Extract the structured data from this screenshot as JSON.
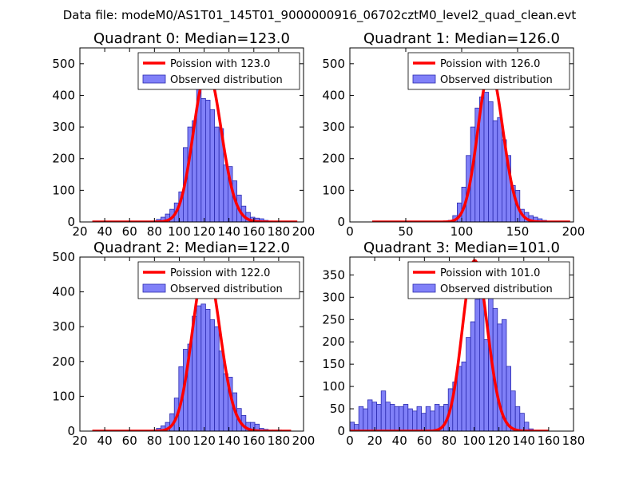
{
  "figure": {
    "suptitle": "Data file: modeM0/AS1T01_145T01_9000000916_06702cztM0_level2_quad_clean.evt"
  },
  "colors": {
    "bar_fill": "#8080f8",
    "bar_edge": "#2b2bb0",
    "poisson_line": "#ff0000"
  },
  "chart_data": [
    {
      "type": "bar",
      "title": "Quadrant 0: Median=123.0",
      "legend": {
        "placement": "top-right",
        "line_label": "Poission with 123.0",
        "bar_label": "Observed distribution"
      },
      "xlim": [
        20,
        200
      ],
      "ylim": [
        0,
        550
      ],
      "xticks": [
        20,
        40,
        60,
        80,
        100,
        120,
        140,
        160,
        180,
        200
      ],
      "yticks": [
        0,
        100,
        200,
        300,
        400,
        500
      ],
      "bin_width": 3.6,
      "bins_x": [
        78,
        81.6,
        85.2,
        88.8,
        92.4,
        96,
        99.6,
        103.2,
        106.8,
        110.4,
        114,
        117.6,
        121.2,
        124.8,
        128.4,
        132,
        135.6,
        139.2,
        142.8,
        146.4,
        150,
        153.6,
        157.2,
        160.8,
        164.4,
        168,
        171.6
      ],
      "bins_y": [
        3,
        8,
        15,
        25,
        40,
        60,
        95,
        235,
        300,
        320,
        435,
        390,
        385,
        355,
        300,
        295,
        180,
        175,
        130,
        85,
        50,
        30,
        15,
        12,
        10,
        5,
        3
      ],
      "poisson": {
        "mean": 123.0,
        "peak": 480,
        "x_range": [
          30,
          195
        ]
      }
    },
    {
      "type": "bar",
      "title": "Quadrant 1: Median=126.0",
      "legend": {
        "placement": "top-right",
        "line_label": "Poission with 126.0",
        "bar_label": "Observed distribution"
      },
      "xlim": [
        0,
        200
      ],
      "ylim": [
        0,
        550
      ],
      "xticks": [
        0,
        50,
        100,
        150,
        200
      ],
      "yticks": [
        0,
        100,
        200,
        300,
        400,
        500
      ],
      "bin_width": 4,
      "bins_x": [
        88,
        92,
        96,
        100,
        104,
        108,
        112,
        116,
        120,
        124,
        128,
        132,
        136,
        140,
        144,
        148,
        152,
        156,
        160,
        164,
        168,
        172
      ],
      "bins_y": [
        5,
        20,
        60,
        110,
        210,
        300,
        360,
        395,
        410,
        380,
        320,
        330,
        260,
        210,
        115,
        100,
        40,
        30,
        20,
        15,
        10,
        5
      ],
      "poisson": {
        "mean": 126.0,
        "peak": 480,
        "x_range": [
          20,
          197
        ]
      }
    },
    {
      "type": "bar",
      "title": "Quadrant 2: Median=122.0",
      "legend": {
        "placement": "top-right",
        "line_label": "Poission with 122.0",
        "bar_label": "Observed distribution"
      },
      "xlim": [
        20,
        200
      ],
      "ylim": [
        0,
        500
      ],
      "xticks": [
        20,
        40,
        60,
        80,
        100,
        120,
        140,
        160,
        180,
        200
      ],
      "yticks": [
        0,
        100,
        200,
        300,
        400,
        500
      ],
      "bin_width": 3.6,
      "bins_x": [
        78,
        81.6,
        85.2,
        88.8,
        92.4,
        96,
        99.6,
        103.2,
        106.8,
        110.4,
        114,
        117.6,
        121.2,
        124.8,
        128.4,
        132,
        135.6,
        139.2,
        142.8,
        146.4,
        150,
        153.6,
        157.2,
        160.8,
        164.4,
        168,
        171.6,
        175.2,
        178.8
      ],
      "bins_y": [
        3,
        8,
        15,
        25,
        50,
        95,
        185,
        235,
        250,
        330,
        360,
        365,
        350,
        320,
        300,
        230,
        165,
        155,
        110,
        65,
        45,
        25,
        25,
        20,
        8,
        5,
        3,
        3,
        3
      ],
      "poisson": {
        "mean": 122.0,
        "peak": 478,
        "x_range": [
          30,
          190
        ]
      }
    },
    {
      "type": "bar",
      "title": "Quadrant 3: Median=101.0",
      "legend": {
        "placement": "top-right",
        "line_label": "Poission with 101.0",
        "bar_label": "Observed distribution"
      },
      "xlim": [
        0,
        180
      ],
      "ylim": [
        0,
        390
      ],
      "xticks": [
        0,
        20,
        40,
        60,
        80,
        100,
        120,
        140,
        160,
        180
      ],
      "yticks": [
        0,
        50,
        100,
        150,
        200,
        250,
        300,
        350
      ],
      "bin_width": 3.6,
      "bins_x": [
        0,
        3.6,
        7.2,
        10.8,
        14.4,
        18,
        21.6,
        25.2,
        28.8,
        32.4,
        36,
        39.6,
        43.2,
        46.8,
        50.4,
        54,
        57.6,
        61.2,
        64.8,
        68.4,
        72,
        75.6,
        79.2,
        82.8,
        86.4,
        90,
        93.6,
        97.2,
        100.8,
        104.4,
        108,
        111.6,
        115.2,
        118.8,
        122.4,
        126,
        129.6,
        133.2,
        136.8,
        140.4,
        144
      ],
      "bins_y": [
        20,
        15,
        55,
        50,
        70,
        65,
        60,
        90,
        65,
        60,
        55,
        55,
        60,
        50,
        45,
        55,
        40,
        55,
        45,
        60,
        55,
        60,
        95,
        110,
        145,
        155,
        210,
        245,
        295,
        300,
        205,
        300,
        275,
        240,
        250,
        145,
        90,
        55,
        40,
        20,
        5
      ],
      "poisson": {
        "mean": 101.0,
        "peak": 382,
        "x_range": [
          0,
          160
        ]
      }
    }
  ]
}
